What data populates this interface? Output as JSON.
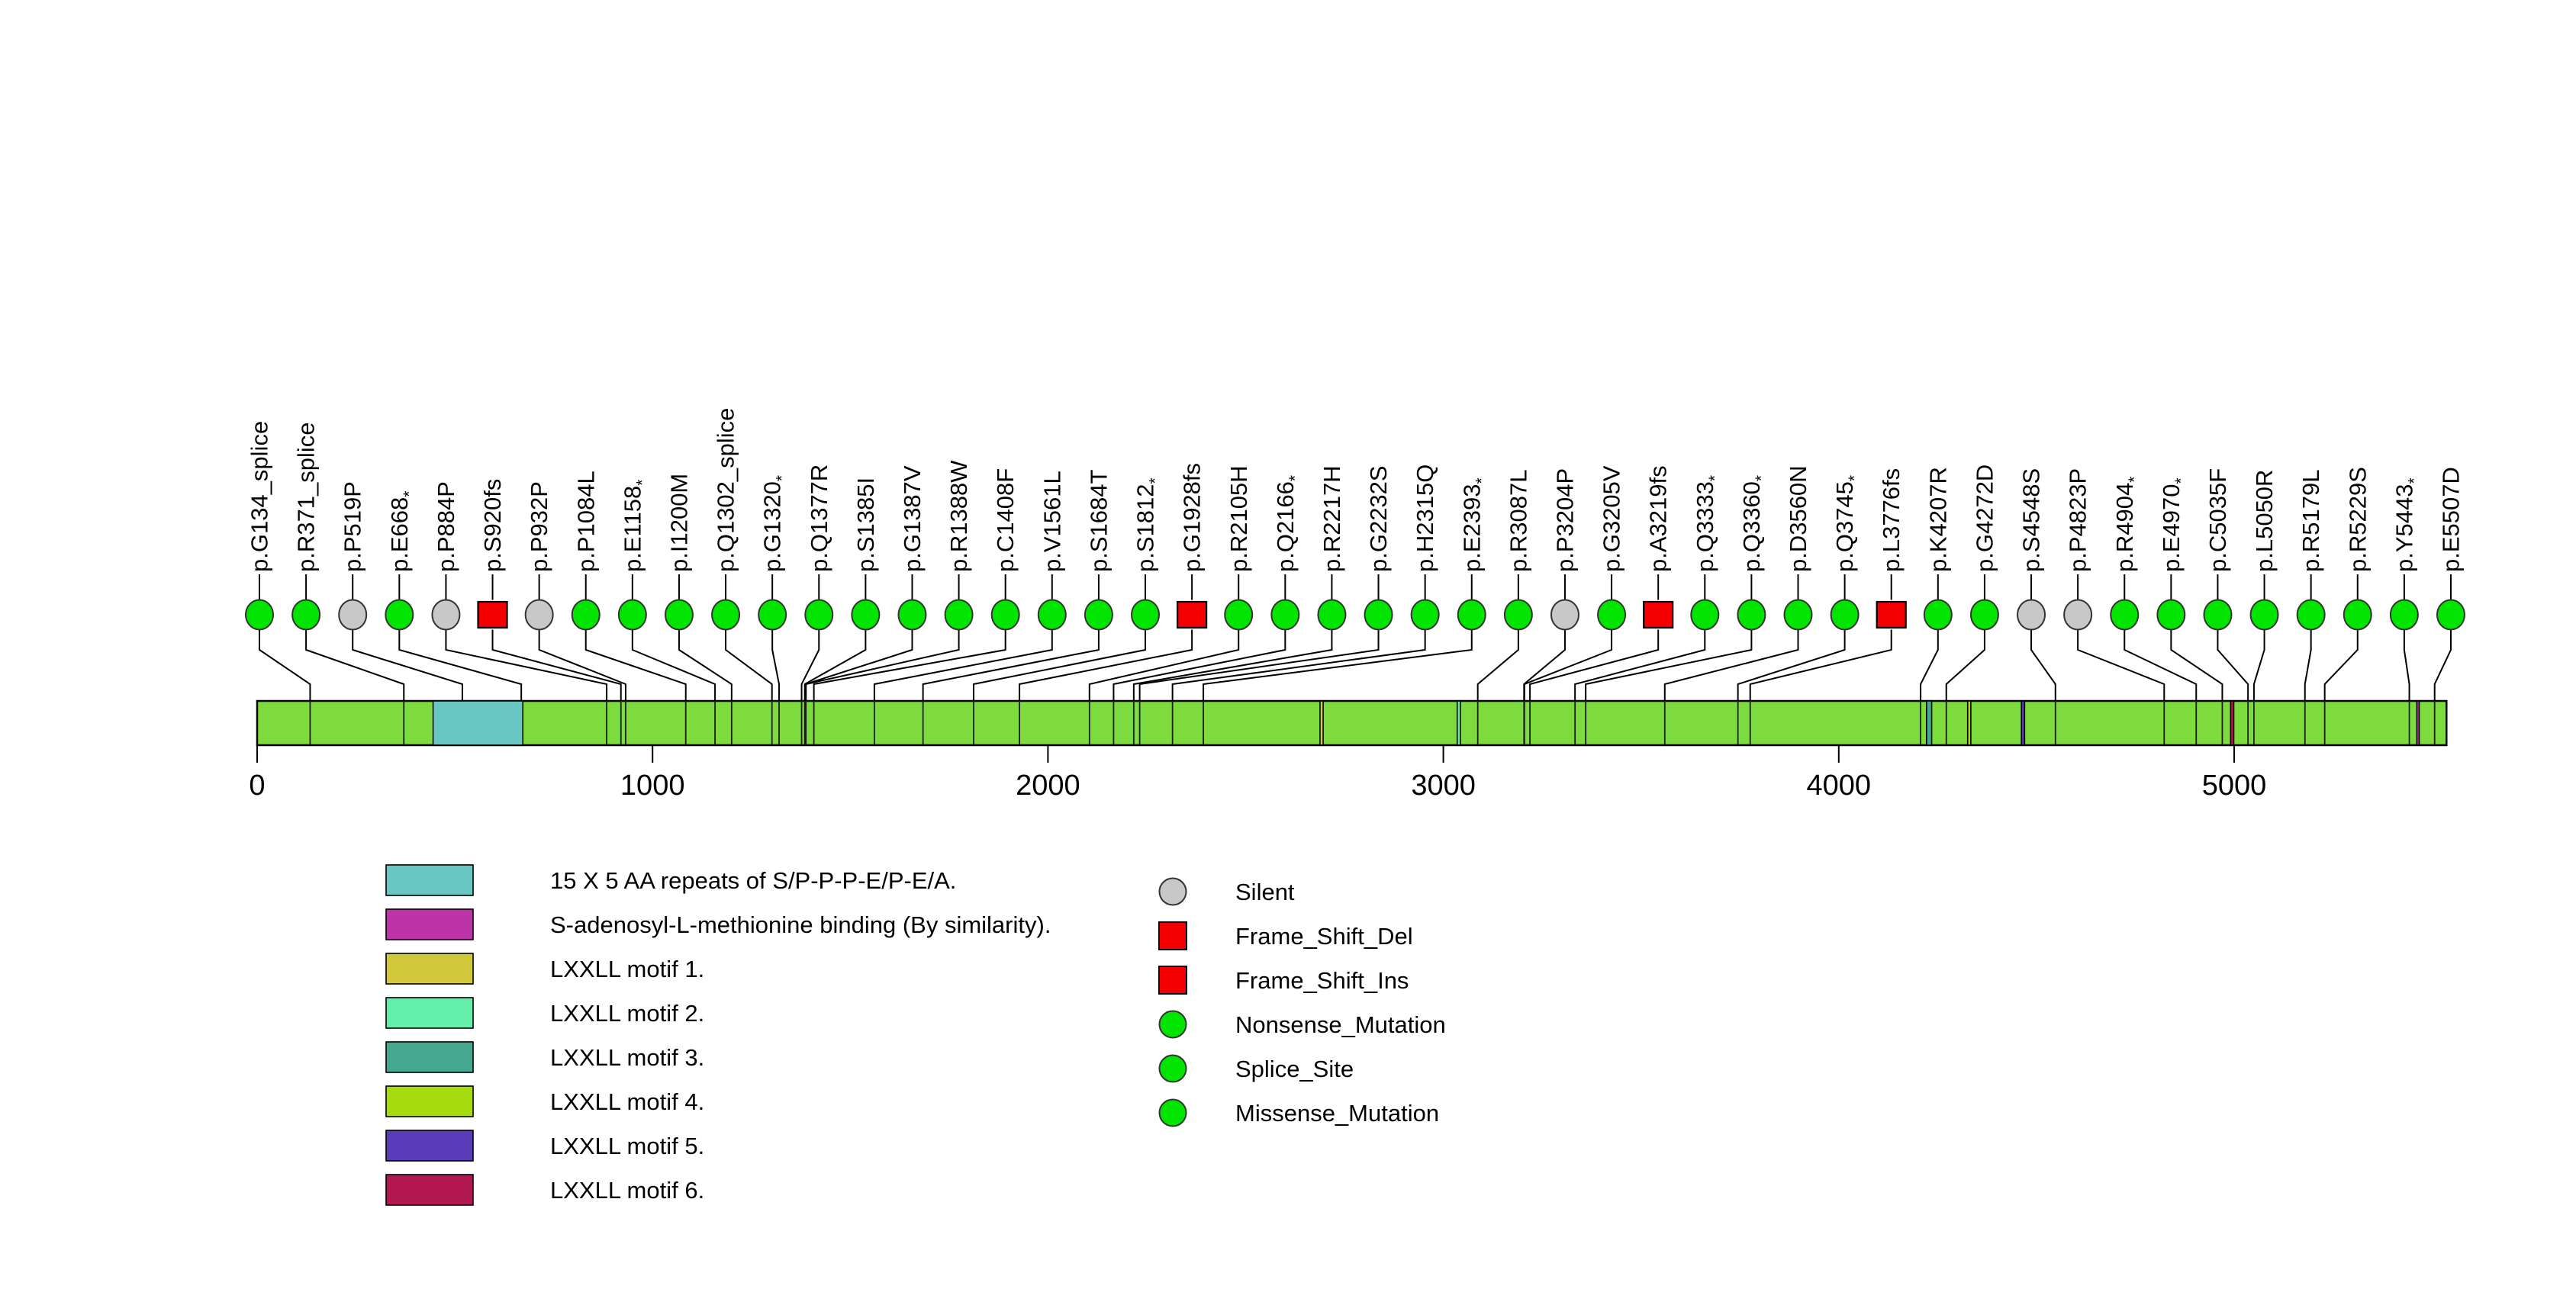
{
  "chart_data": {
    "type": "lollipop",
    "title": "",
    "protein": {
      "length": 5537,
      "bar_color": "#7EDB3E",
      "bar_border_color": "#000000"
    },
    "axis": {
      "ticks": [
        0,
        1000,
        2000,
        3000,
        4000,
        5000
      ],
      "range": [
        0,
        5537
      ],
      "tick_color": "#000000"
    },
    "marker_colors": {
      "missense": "#00E400",
      "splice_site": "#00E400",
      "nonsense": "#00E400",
      "silent": "#C8C8C8",
      "frame_shift": "#F40000"
    },
    "mutations": [
      {
        "label": "p.G134_splice",
        "pos": 134,
        "type": "splice_site"
      },
      {
        "label": "p.R371_splice",
        "pos": 371,
        "type": "splice_site"
      },
      {
        "label": "p.P519P",
        "pos": 519,
        "type": "silent"
      },
      {
        "label": "p.E668*",
        "pos": 668,
        "type": "nonsense"
      },
      {
        "label": "p.P884P",
        "pos": 884,
        "type": "silent"
      },
      {
        "label": "p.S920fs",
        "pos": 920,
        "type": "frame_shift"
      },
      {
        "label": "p.P932P",
        "pos": 932,
        "type": "silent"
      },
      {
        "label": "p.P1084L",
        "pos": 1084,
        "type": "missense"
      },
      {
        "label": "p.E1158*",
        "pos": 1158,
        "type": "nonsense"
      },
      {
        "label": "p.I1200M",
        "pos": 1200,
        "type": "missense"
      },
      {
        "label": "p.Q1302_splice",
        "pos": 1302,
        "type": "splice_site"
      },
      {
        "label": "p.G1320*",
        "pos": 1320,
        "type": "nonsense"
      },
      {
        "label": "p.Q1377R",
        "pos": 1377,
        "type": "missense"
      },
      {
        "label": "p.S1385I",
        "pos": 1385,
        "type": "missense"
      },
      {
        "label": "p.G1387V",
        "pos": 1387,
        "type": "missense"
      },
      {
        "label": "p.R1388W",
        "pos": 1388,
        "type": "missense"
      },
      {
        "label": "p.C1408F",
        "pos": 1408,
        "type": "missense"
      },
      {
        "label": "p.V1561L",
        "pos": 1561,
        "type": "missense"
      },
      {
        "label": "p.S1684T",
        "pos": 1684,
        "type": "missense"
      },
      {
        "label": "p.S1812*",
        "pos": 1812,
        "type": "nonsense"
      },
      {
        "label": "p.G1928fs",
        "pos": 1928,
        "type": "frame_shift"
      },
      {
        "label": "p.R2105H",
        "pos": 2105,
        "type": "missense"
      },
      {
        "label": "p.Q2166*",
        "pos": 2166,
        "type": "nonsense"
      },
      {
        "label": "p.R2217H",
        "pos": 2217,
        "type": "missense"
      },
      {
        "label": "p.G2232S",
        "pos": 2232,
        "type": "missense"
      },
      {
        "label": "p.H2315Q",
        "pos": 2315,
        "type": "missense"
      },
      {
        "label": "p.E2393*",
        "pos": 2393,
        "type": "nonsense"
      },
      {
        "label": "p.R3087L",
        "pos": 3087,
        "type": "missense"
      },
      {
        "label": "p.P3204P",
        "pos": 3204,
        "type": "silent"
      },
      {
        "label": "p.G3205V",
        "pos": 3205,
        "type": "missense"
      },
      {
        "label": "p.A3219fs",
        "pos": 3219,
        "type": "frame_shift"
      },
      {
        "label": "p.Q3333*",
        "pos": 3333,
        "type": "nonsense"
      },
      {
        "label": "p.Q3360*",
        "pos": 3360,
        "type": "nonsense"
      },
      {
        "label": "p.D3560N",
        "pos": 3560,
        "type": "missense"
      },
      {
        "label": "p.Q3745*",
        "pos": 3745,
        "type": "nonsense"
      },
      {
        "label": "p.L3776fs",
        "pos": 3776,
        "type": "frame_shift"
      },
      {
        "label": "p.K4207R",
        "pos": 4207,
        "type": "missense"
      },
      {
        "label": "p.G4272D",
        "pos": 4272,
        "type": "missense"
      },
      {
        "label": "p.S4548S",
        "pos": 4548,
        "type": "silent"
      },
      {
        "label": "p.P4823P",
        "pos": 4823,
        "type": "silent"
      },
      {
        "label": "p.R4904*",
        "pos": 4904,
        "type": "nonsense"
      },
      {
        "label": "p.E4970*",
        "pos": 4970,
        "type": "nonsense"
      },
      {
        "label": "p.C5035F",
        "pos": 5035,
        "type": "missense"
      },
      {
        "label": "p.L5050R",
        "pos": 5050,
        "type": "missense"
      },
      {
        "label": "p.R5179L",
        "pos": 5179,
        "type": "missense"
      },
      {
        "label": "p.R5229S",
        "pos": 5229,
        "type": "missense"
      },
      {
        "label": "p.Y5443*",
        "pos": 5443,
        "type": "nonsense"
      },
      {
        "label": "p.E5507D",
        "pos": 5507,
        "type": "missense"
      }
    ],
    "domains": [
      {
        "name": "15 X 5 AA repeats of S/P-P-P-E/P-E/A.",
        "start": 445,
        "end": 672,
        "color": "#69C8C4"
      },
      {
        "name": "S-adenosyl-L-methionine binding (By similarity).",
        "start": 5462,
        "end": 5468,
        "color": "#BC34A8"
      },
      {
        "name": "LXXLL motif 1.",
        "start": 2688,
        "end": 2696,
        "color": "#D2C83C"
      },
      {
        "name": "LXXLL motif 2.",
        "start": 3035,
        "end": 3043,
        "color": "#63EFA9"
      },
      {
        "name": "LXXLL motif 3.",
        "start": 4222,
        "end": 4235,
        "color": "#46A890"
      },
      {
        "name": "LXXLL motif 4.",
        "start": 4326,
        "end": 4334,
        "color": "#A6DC0D"
      },
      {
        "name": "LXXLL motif 5.",
        "start": 4462,
        "end": 4470,
        "color": "#5A3BB8"
      },
      {
        "name": "LXXLL motif 6.",
        "start": 4991,
        "end": 4999,
        "color": "#B2174F"
      }
    ],
    "legend_mutation_types": [
      {
        "label": "Silent",
        "shape": "circle",
        "color": "#C8C8C8"
      },
      {
        "label": "Frame_Shift_Del",
        "shape": "square",
        "color": "#F40000"
      },
      {
        "label": "Frame_Shift_Ins",
        "shape": "square",
        "color": "#F40000"
      },
      {
        "label": "Nonsense_Mutation",
        "shape": "circle",
        "color": "#00E400"
      },
      {
        "label": "Splice_Site",
        "shape": "circle",
        "color": "#00E400"
      },
      {
        "label": "Missense_Mutation",
        "shape": "circle",
        "color": "#00E400"
      }
    ]
  }
}
